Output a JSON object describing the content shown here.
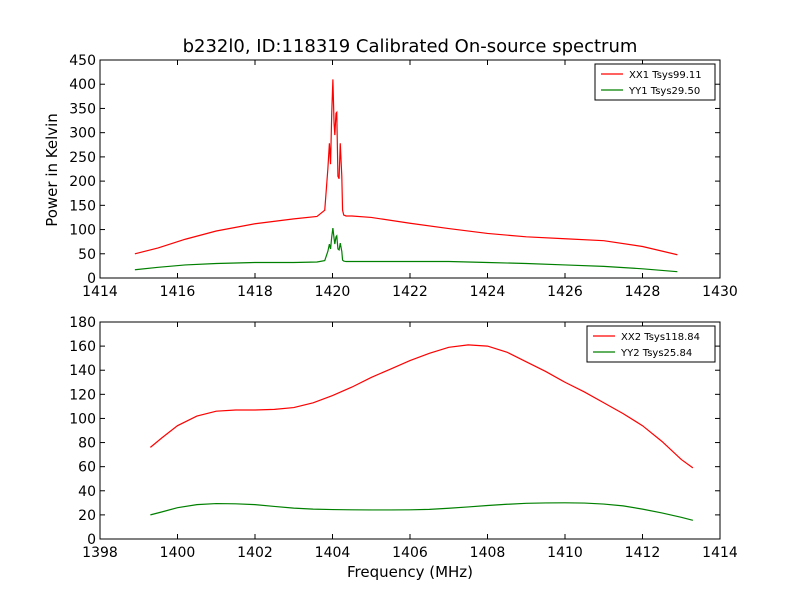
{
  "page_title": "b232l0, ID:118319 Calibrated On-source spectrum",
  "shared_ylabel": "Power in Kelvin",
  "shared_xlabel": "Frequency (MHz)",
  "chart_data": [
    {
      "type": "line",
      "title": "b232l0, ID:118319 Calibrated On-source spectrum",
      "xlabel": "",
      "ylabel": "Power in Kelvin",
      "xlim": [
        1414,
        1430
      ],
      "ylim": [
        0,
        450
      ],
      "xticks": [
        "1414",
        "1416",
        "1418",
        "1420",
        "1422",
        "1424",
        "1426",
        "1428",
        "1430"
      ],
      "yticks": [
        "0",
        "50",
        "100",
        "150",
        "200",
        "250",
        "300",
        "350",
        "400",
        "450"
      ],
      "grid": false,
      "legend": "top-right",
      "series": [
        {
          "name": "XX1 Tsys99.11",
          "color": "#ff0000",
          "x": [
            1414.9,
            1415.5,
            1416.2,
            1417.0,
            1418.0,
            1419.0,
            1419.6,
            1419.8,
            1419.88,
            1419.92,
            1419.95,
            1419.98,
            1420.01,
            1420.04,
            1420.06,
            1420.09,
            1420.11,
            1420.14,
            1420.17,
            1420.2,
            1420.24,
            1420.26,
            1420.29,
            1420.35,
            1420.5,
            1421.0,
            1422.0,
            1423.0,
            1424.0,
            1425.0,
            1426.0,
            1427.0,
            1428.0,
            1428.9
          ],
          "y": [
            50,
            62,
            80,
            97,
            112,
            122,
            127,
            140,
            225,
            278,
            235,
            340,
            410,
            320,
            295,
            340,
            342,
            210,
            205,
            278,
            210,
            140,
            130,
            128,
            128,
            125,
            113,
            102,
            92,
            85,
            81,
            77,
            65,
            48
          ]
        },
        {
          "name": "YY1 Tsys29.50",
          "color": "#008000",
          "x": [
            1414.9,
            1415.5,
            1416.2,
            1417.0,
            1418.0,
            1419.0,
            1419.6,
            1419.8,
            1419.88,
            1419.92,
            1419.95,
            1419.98,
            1420.01,
            1420.04,
            1420.06,
            1420.09,
            1420.11,
            1420.14,
            1420.17,
            1420.2,
            1420.24,
            1420.26,
            1420.29,
            1420.35,
            1420.5,
            1421.0,
            1422.0,
            1423.0,
            1424.0,
            1425.0,
            1426.0,
            1427.0,
            1428.0,
            1428.9
          ],
          "y": [
            17,
            22,
            27,
            30,
            32,
            32,
            33,
            36,
            55,
            70,
            60,
            85,
            103,
            82,
            70,
            85,
            87,
            60,
            58,
            72,
            55,
            37,
            35,
            34,
            34,
            34,
            34,
            34,
            32,
            30,
            27,
            24,
            19,
            13
          ]
        }
      ]
    },
    {
      "type": "line",
      "title": "",
      "xlabel": "Frequency (MHz)",
      "ylabel": "",
      "xlim": [
        1398,
        1414
      ],
      "ylim": [
        0,
        180
      ],
      "xticks": [
        "1398",
        "1400",
        "1402",
        "1404",
        "1406",
        "1408",
        "1410",
        "1412",
        "1414"
      ],
      "yticks": [
        "0",
        "20",
        "40",
        "60",
        "80",
        "100",
        "120",
        "140",
        "160",
        "180"
      ],
      "grid": false,
      "legend": "top-right",
      "series": [
        {
          "name": "XX2 Tsys118.84",
          "color": "#ff0000",
          "x": [
            1399.3,
            1399.6,
            1400.0,
            1400.5,
            1401.0,
            1401.5,
            1402.0,
            1402.5,
            1403.0,
            1403.5,
            1404.0,
            1404.5,
            1405.0,
            1405.5,
            1406.0,
            1406.5,
            1407.0,
            1407.5,
            1408.0,
            1408.5,
            1409.0,
            1409.5,
            1410.0,
            1410.5,
            1411.0,
            1411.5,
            1412.0,
            1412.5,
            1413.0,
            1413.3
          ],
          "y": [
            76,
            84,
            94,
            102,
            106,
            107,
            107,
            107.5,
            109,
            113,
            119,
            126,
            134,
            141,
            148,
            154,
            159,
            161,
            160,
            155,
            147,
            139,
            130,
            122,
            113,
            104,
            94,
            81,
            66,
            59
          ]
        },
        {
          "name": "YY2 Tsys25.84",
          "color": "#008000",
          "x": [
            1399.3,
            1399.6,
            1400.0,
            1400.5,
            1401.0,
            1401.5,
            1402.0,
            1402.5,
            1403.0,
            1403.5,
            1404.0,
            1404.5,
            1405.0,
            1405.5,
            1406.0,
            1406.5,
            1407.0,
            1407.5,
            1408.0,
            1408.5,
            1409.0,
            1409.5,
            1410.0,
            1410.5,
            1411.0,
            1411.5,
            1412.0,
            1412.5,
            1413.0,
            1413.3
          ],
          "y": [
            20,
            22.5,
            26,
            28.5,
            29.4,
            29.2,
            28.5,
            27,
            25.6,
            24.8,
            24.4,
            24.2,
            24.1,
            24.1,
            24.2,
            24.6,
            25.5,
            26.6,
            27.8,
            28.8,
            29.6,
            29.9,
            30,
            29.8,
            29,
            27.5,
            24.8,
            21.6,
            18,
            15.5
          ]
        }
      ]
    }
  ]
}
